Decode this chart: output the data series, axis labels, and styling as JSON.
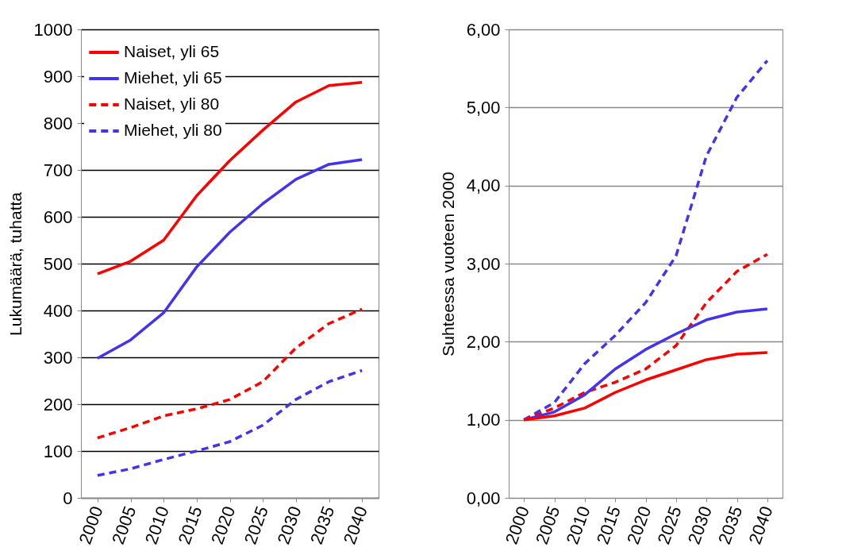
{
  "chart_data": [
    {
      "type": "line",
      "ylabel": "Lukumäärä, tuhatta",
      "categories": [
        "2000",
        "2005",
        "2010",
        "2015",
        "2020",
        "2025",
        "2030",
        "2035",
        "2040"
      ],
      "ylim": [
        0,
        1000
      ],
      "yticks": [
        0,
        100,
        200,
        300,
        400,
        500,
        600,
        700,
        800,
        900,
        1000
      ],
      "grid": "y",
      "legend": "top left",
      "series": [
        {
          "name": "Naiset, yli 65",
          "color": "#ff0000",
          "line_style": "solid",
          "values": [
            478,
            505,
            550,
            645,
            720,
            785,
            845,
            880,
            887
          ]
        },
        {
          "name": "Miehet, yli 65",
          "color": "#4433ee",
          "line_style": "solid",
          "values": [
            298,
            337,
            395,
            493,
            567,
            628,
            680,
            712,
            722
          ]
        },
        {
          "name": "Naiset, yli 80",
          "color": "#ff0000",
          "line_style": "dashed",
          "values": [
            128,
            150,
            175,
            190,
            210,
            248,
            320,
            372,
            403
          ]
        },
        {
          "name": "Miehet, yli 80",
          "color": "#4433ee",
          "line_style": "dashed",
          "values": [
            48,
            62,
            82,
            100,
            120,
            155,
            210,
            248,
            272
          ]
        }
      ]
    },
    {
      "type": "line",
      "ylabel": "Suhteessa vuoteen 2000",
      "categories": [
        "2000",
        "2005",
        "2010",
        "2015",
        "2020",
        "2025",
        "2030",
        "2035",
        "2040"
      ],
      "ylim": [
        0,
        6
      ],
      "yticks": [
        {
          "value": 0,
          "label": "0,00"
        },
        {
          "value": 1,
          "label": "1,00"
        },
        {
          "value": 2,
          "label": "2,00"
        },
        {
          "value": 3,
          "label": "3,00"
        },
        {
          "value": 4,
          "label": "4,00"
        },
        {
          "value": 5,
          "label": "5,00"
        },
        {
          "value": 6,
          "label": "6,00"
        }
      ],
      "grid": "y",
      "legend": "top left",
      "series": [
        {
          "name": "Miehet, yli 80",
          "color": "#4433ee",
          "line_style": "dashed",
          "values": [
            1.0,
            1.22,
            1.72,
            2.08,
            2.5,
            3.1,
            4.38,
            5.13,
            5.6
          ]
        },
        {
          "name": "Naiset, yli 80",
          "color": "#ff0000",
          "line_style": "dashed",
          "values": [
            1.0,
            1.15,
            1.35,
            1.48,
            1.65,
            1.95,
            2.5,
            2.9,
            3.12
          ]
        },
        {
          "name": "Miehet, yli 65",
          "color": "#4433ee",
          "line_style": "solid",
          "values": [
            1.0,
            1.1,
            1.32,
            1.65,
            1.9,
            2.1,
            2.28,
            2.38,
            2.42
          ]
        },
        {
          "name": "Naiset, yli 65",
          "color": "#ff0000",
          "line_style": "solid",
          "values": [
            1.0,
            1.05,
            1.15,
            1.35,
            1.51,
            1.64,
            1.77,
            1.84,
            1.86
          ]
        }
      ]
    }
  ]
}
